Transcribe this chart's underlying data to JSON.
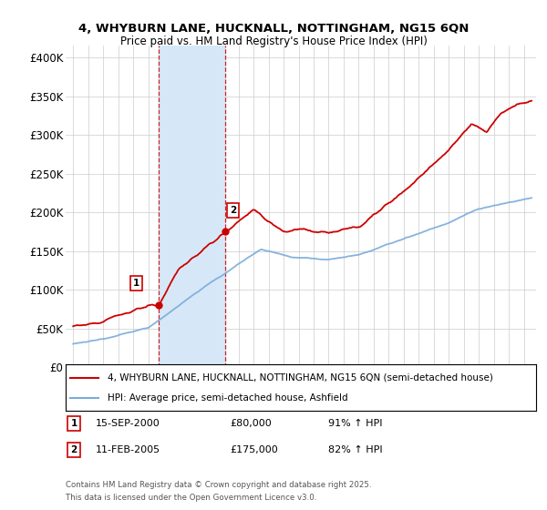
{
  "title": "4, WHYBURN LANE, HUCKNALL, NOTTINGHAM, NG15 6QN",
  "subtitle": "Price paid vs. HM Land Registry's House Price Index (HPI)",
  "ylabel_ticks": [
    "£0",
    "£50K",
    "£100K",
    "£150K",
    "£200K",
    "£250K",
    "£300K",
    "£350K",
    "£400K"
  ],
  "ytick_values": [
    0,
    50000,
    100000,
    150000,
    200000,
    250000,
    300000,
    350000,
    400000
  ],
  "ylim": [
    0,
    415000
  ],
  "xlim_start": 1994.5,
  "xlim_end": 2025.8,
  "purchase1": {
    "year": 2000.71,
    "price": 80000,
    "label": "1",
    "date": "15-SEP-2000",
    "price_str": "£80,000",
    "hpi_pct": "91% ↑ HPI"
  },
  "purchase2": {
    "year": 2005.12,
    "price": 175000,
    "label": "2",
    "date": "11-FEB-2005",
    "price_str": "£175,000",
    "hpi_pct": "82% ↑ HPI"
  },
  "shade_start": 2000.71,
  "shade_end": 2005.12,
  "red_color": "#cc0000",
  "blue_color": "#7aabdb",
  "shade_color": "#d6e8f7",
  "grid_color": "#cccccc",
  "legend_label_red": "4, WHYBURN LANE, HUCKNALL, NOTTINGHAM, NG15 6QN (semi-detached house)",
  "legend_label_blue": "HPI: Average price, semi-detached house, Ashfield",
  "footnote1": "Contains HM Land Registry data © Crown copyright and database right 2025.",
  "footnote2": "This data is licensed under the Open Government Licence v3.0."
}
